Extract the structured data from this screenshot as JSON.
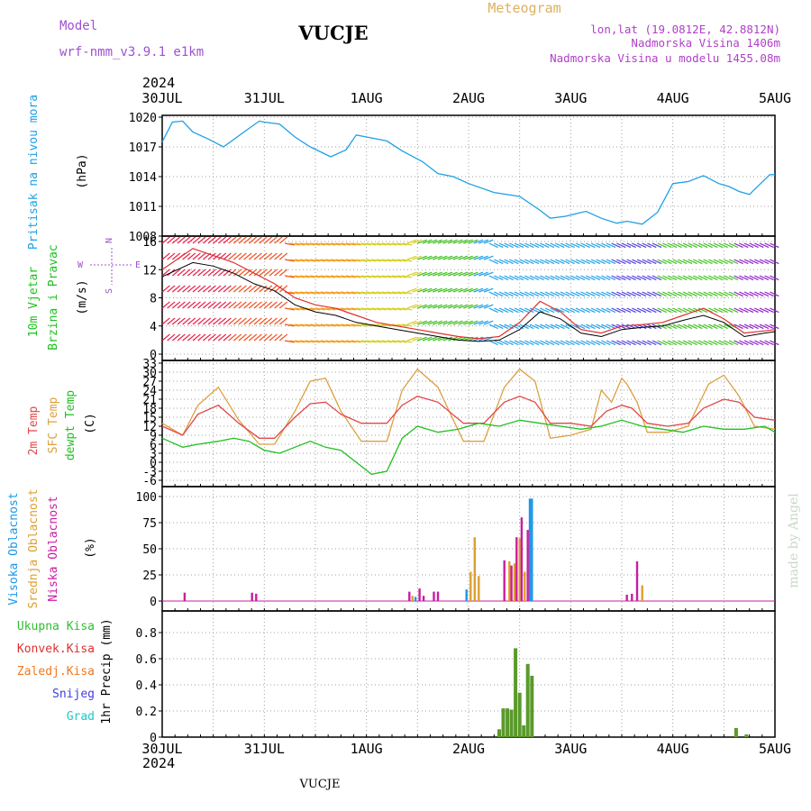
{
  "header": {
    "model_label": "Model",
    "model_name": "wrf-nmm_v3.9.1  e1km",
    "station": "VUCJE",
    "meteogram": "Meteogram",
    "lonlat": "lon,lat (19.0812E, 42.8812N)",
    "altitude": "Nadmorska Visina 1406m",
    "model_altitude": "Nadmorska Visina u modelu 1455.08m",
    "year": "2024",
    "footer_station": "VUCJE",
    "credit": "made by Angel"
  },
  "colors": {
    "pressure": "#1ea0e6",
    "wind_speed": "#000000",
    "gust": "#e03030",
    "temp2m": "#e04848",
    "sfc": "#dca040",
    "dew": "#20c020",
    "high_cloud": "#1e96e6",
    "mid_cloud": "#dca030",
    "low_cloud": "#c81ea0",
    "total_rain": "#30c030",
    "conv_rain": "#e03030",
    "freezing": "#f07820",
    "snow": "#4040e0",
    "hail": "#20c8c8",
    "precip_bar": "#5a9a2a"
  },
  "chart_data": [
    {
      "type": "line",
      "panel": "pressure",
      "ylabel": "Pritisak na nivou mora",
      "unit": "(hPa)",
      "x_labels": [
        "30JUL",
        "31JUL",
        "1AUG",
        "2AUG",
        "3AUG",
        "4AUG",
        "5AUG"
      ],
      "ylim": [
        1008,
        1020
      ],
      "yticks": [
        1008,
        1011,
        1014,
        1017,
        1020
      ],
      "grid": true,
      "series": [
        {
          "name": "Pritisak na nivou mora",
          "x": [
            0,
            0.1,
            0.2,
            0.3,
            0.45,
            0.6,
            0.8,
            0.95,
            1.0,
            1.15,
            1.3,
            1.45,
            1.55,
            1.65,
            1.8,
            1.9,
            2.0,
            2.2,
            2.35,
            2.55,
            2.7,
            2.85,
            3.0,
            3.25,
            3.5,
            3.7,
            3.8,
            3.95,
            4.15,
            4.3,
            4.45,
            4.55,
            4.7,
            4.85,
            5.0,
            5.15,
            5.3,
            5.45,
            5.55,
            5.65,
            5.75,
            5.85,
            5.95,
            6.0
          ],
          "y": [
            1017.5,
            1019.5,
            1019.6,
            1018.5,
            1017.8,
            1017,
            1018.5,
            1019.6,
            1019.5,
            1019.3,
            1018,
            1017,
            1016.5,
            1016,
            1016.7,
            1018.2,
            1018,
            1017.6,
            1016.6,
            1015.5,
            1014.3,
            1014,
            1013.3,
            1012.4,
            1012,
            1010.6,
            1009.8,
            1010,
            1010.5,
            1009.8,
            1009.3,
            1009.5,
            1009.2,
            1010.4,
            1013.3,
            1013.5,
            1014.1,
            1013.3,
            1013,
            1012.5,
            1012.2,
            1013.2,
            1014.2,
            1014.2
          ]
        }
      ]
    },
    {
      "type": "line",
      "panel": "wind",
      "ylabel": "10m Vjetar Brzina i Pravac",
      "unit": "(m/s)",
      "compass": [
        "N",
        "S",
        "E",
        "W"
      ],
      "ylim": [
        0,
        16
      ],
      "yticks": [
        0,
        4,
        8,
        12,
        16
      ],
      "grid": true,
      "series": [
        {
          "name": "Brzina",
          "x": [
            0,
            0.3,
            0.5,
            0.7,
            0.9,
            1.1,
            1.3,
            1.5,
            1.7,
            1.9,
            2.1,
            2.3,
            2.5,
            2.7,
            2.9,
            3.1,
            3.3,
            3.5,
            3.7,
            3.9,
            4.1,
            4.3,
            4.5,
            4.7,
            4.9,
            5.1,
            5.3,
            5.5,
            5.7,
            5.9,
            6.0
          ],
          "y": [
            11,
            13,
            12.5,
            11.5,
            10,
            9,
            7,
            6,
            5.5,
            4.5,
            4,
            3.5,
            3,
            2.5,
            2,
            1.8,
            2,
            3.5,
            6,
            5,
            3,
            2.5,
            3.5,
            3.8,
            4,
            4.8,
            5.5,
            4.5,
            2.5,
            3,
            3.2
          ]
        },
        {
          "name": "Udari",
          "x": [
            0,
            0.3,
            0.5,
            0.7,
            0.9,
            1.1,
            1.3,
            1.5,
            1.7,
            1.9,
            2.1,
            2.3,
            2.5,
            2.7,
            2.9,
            3.1,
            3.3,
            3.5,
            3.7,
            3.9,
            4.1,
            4.3,
            4.5,
            4.7,
            4.9,
            5.1,
            5.3,
            5.5,
            5.7,
            5.9,
            6.0
          ],
          "y": [
            12,
            15,
            14,
            13,
            11.5,
            10,
            8,
            7,
            6.5,
            5.5,
            4.5,
            4,
            3.5,
            3,
            2.5,
            2.2,
            2.5,
            4.5,
            7.5,
            6,
            3.5,
            3,
            4,
            4.2,
            4.5,
            5.5,
            6.5,
            5,
            3,
            3.3,
            3.5
          ]
        }
      ]
    },
    {
      "type": "line",
      "panel": "temperature",
      "ylabels": [
        "2m Temp",
        "SFC Temp",
        "dewpt Temp"
      ],
      "unit": "(C)",
      "ylim": [
        -6,
        33
      ],
      "yticks": [
        -6,
        -3,
        0,
        3,
        6,
        9,
        12,
        15,
        18,
        21,
        24,
        27,
        30,
        33
      ],
      "grid": true,
      "series": [
        {
          "name": "2m Temp",
          "x": [
            0,
            0.2,
            0.35,
            0.55,
            0.75,
            0.95,
            1.1,
            1.3,
            1.45,
            1.6,
            1.75,
            1.95,
            2.2,
            2.35,
            2.5,
            2.7,
            2.95,
            3.15,
            3.35,
            3.5,
            3.65,
            3.8,
            4.0,
            4.2,
            4.35,
            4.5,
            4.6,
            4.75,
            4.95,
            5.15,
            5.3,
            5.5,
            5.65,
            5.8,
            6.0
          ],
          "y": [
            12,
            9,
            16,
            19,
            13,
            8,
            8,
            15,
            19.5,
            20,
            16,
            13,
            13,
            19,
            22,
            20,
            13,
            13,
            20,
            22,
            20,
            13,
            13,
            12,
            17,
            19,
            18,
            13,
            12,
            13,
            18,
            21,
            20,
            15,
            14
          ]
        },
        {
          "name": "SFC Temp",
          "x": [
            0,
            0.2,
            0.35,
            0.55,
            0.75,
            0.95,
            1.1,
            1.3,
            1.45,
            1.6,
            1.75,
            1.95,
            2.2,
            2.35,
            2.5,
            2.7,
            2.95,
            3.15,
            3.35,
            3.5,
            3.65,
            3.8,
            4.0,
            4.2,
            4.3,
            4.4,
            4.5,
            4.55,
            4.65,
            4.75,
            4.95,
            5.15,
            5.35,
            5.5,
            5.65,
            5.8,
            6.0
          ],
          "y": [
            13,
            9,
            19,
            25,
            14,
            6,
            6,
            17,
            27,
            28,
            17,
            7,
            7,
            24,
            31,
            25,
            7,
            7,
            25,
            31,
            27,
            8,
            9,
            11,
            24,
            20,
            28,
            26,
            20,
            10,
            10,
            12,
            26,
            29,
            22,
            12,
            11
          ]
        },
        {
          "name": "dewpt Temp",
          "x": [
            0,
            0.2,
            0.35,
            0.55,
            0.7,
            0.85,
            1.0,
            1.15,
            1.3,
            1.45,
            1.6,
            1.75,
            1.9,
            2.05,
            2.2,
            2.35,
            2.5,
            2.7,
            2.9,
            3.1,
            3.3,
            3.5,
            3.7,
            3.9,
            4.1,
            4.3,
            4.5,
            4.7,
            4.9,
            5.1,
            5.3,
            5.5,
            5.7,
            5.9,
            6.0
          ],
          "y": [
            8,
            5,
            6,
            7,
            8,
            7,
            4,
            3,
            5,
            7,
            5,
            4,
            0,
            -4,
            -3,
            8,
            12,
            10,
            11,
            13,
            12,
            14,
            13,
            12,
            11,
            12,
            14,
            12,
            11,
            10,
            12,
            11,
            11,
            12,
            10
          ]
        }
      ]
    },
    {
      "type": "bar",
      "panel": "clouds",
      "ylabels": [
        "Visoka Oblacnost",
        "Srednja Oblacnost",
        "Niska Oblacnost"
      ],
      "unit": "(%)",
      "ylim": [
        0,
        100
      ],
      "yticks": [
        0,
        25,
        50,
        75,
        100
      ],
      "grid": true,
      "series": [
        {
          "name": "Visoka Oblacnost",
          "x": [
            2.48,
            2.98,
            3.6,
            3.62
          ],
          "y": [
            4,
            11,
            98,
            98
          ]
        },
        {
          "name": "Srednja Oblacnost",
          "x": [
            2.45,
            3.02,
            3.06,
            3.1,
            3.4,
            3.45,
            3.5,
            3.55,
            4.7
          ],
          "y": [
            5,
            28,
            61,
            24,
            38,
            36,
            60,
            28,
            15
          ]
        },
        {
          "name": "Niska Oblacnost",
          "x": [
            0.22,
            0.88,
            0.92,
            2.42,
            2.52,
            2.56,
            2.66,
            2.7,
            3.35,
            3.42,
            3.47,
            3.52,
            3.58,
            4.55,
            4.6,
            4.65
          ],
          "y": [
            8,
            8,
            7,
            9,
            12,
            5,
            9,
            9,
            39,
            34,
            61,
            80,
            68,
            6,
            7,
            38
          ]
        }
      ]
    },
    {
      "type": "bar",
      "panel": "precipitation",
      "ylabels": [
        "Ukupna Kisa",
        "Konvek.Kisa",
        "Zaledj.Kisa",
        "Snijeg",
        "Grad"
      ],
      "unit": "1hr Precip (mm)",
      "x_labels": [
        "30JUL",
        "31JUL",
        "1AUG",
        "2AUG",
        "3AUG",
        "4AUG",
        "5AUG"
      ],
      "ylim": [
        0,
        0.9
      ],
      "yticks": [
        0,
        0.2,
        0.4,
        0.6,
        0.8
      ],
      "grid": true,
      "series": [
        {
          "name": "1hr Precip",
          "x": [
            3.3,
            3.34,
            3.38,
            3.42,
            3.46,
            3.5,
            3.54,
            3.58,
            3.62,
            5.62,
            5.72
          ],
          "y": [
            0.06,
            0.22,
            0.22,
            0.21,
            0.68,
            0.34,
            0.09,
            0.56,
            0.47,
            0.07,
            0.02
          ]
        }
      ]
    }
  ]
}
